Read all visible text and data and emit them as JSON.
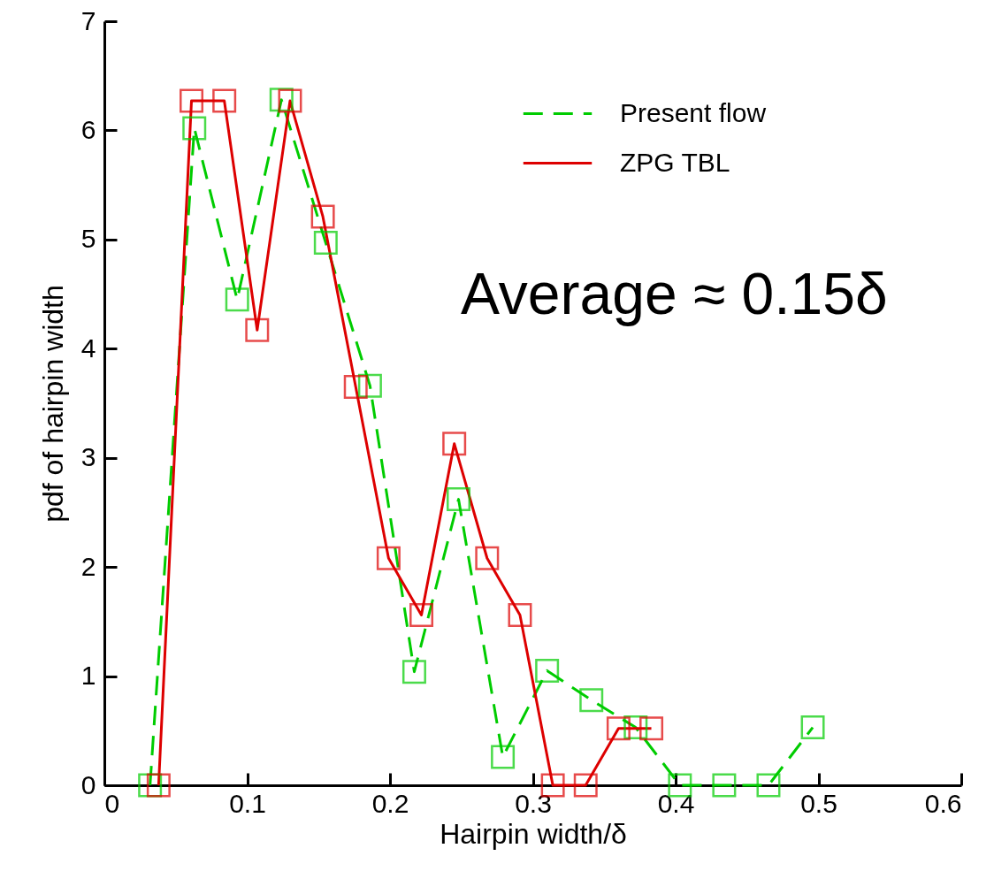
{
  "chart_data": {
    "type": "line",
    "xlabel": "Hairpin width/δ",
    "ylabel": "pdf of hairpin width",
    "annotations": [
      "Average ≈ 0.15δ"
    ],
    "xlim": [
      0,
      0.6
    ],
    "ylim": [
      0,
      7
    ],
    "xticks": [
      0,
      0.1,
      0.2,
      0.3,
      0.4,
      0.5,
      0.6
    ],
    "yticks": [
      0,
      1,
      2,
      3,
      4,
      5,
      6,
      7
    ],
    "legend": "top right",
    "marker": "square",
    "series": [
      {
        "name": "Present flow",
        "color": "#00cc00",
        "line_style": "dashed",
        "x": [
          0.032,
          0.063,
          0.093,
          0.124,
          0.155,
          0.186,
          0.217,
          0.248,
          0.279,
          0.31,
          0.341,
          0.372,
          0.403,
          0.434,
          0.465,
          0.496
        ],
        "values": [
          0,
          6.02,
          4.45,
          6.28,
          4.97,
          3.66,
          1.04,
          2.62,
          0.26,
          1.05,
          0.78,
          0.53,
          0,
          0,
          0,
          0.53
        ]
      },
      {
        "name": "ZPG TBL",
        "color": "#dd0000",
        "line_style": "solid",
        "x": [
          0.038,
          0.061,
          0.084,
          0.107,
          0.13,
          0.153,
          0.176,
          0.199,
          0.222,
          0.245,
          0.268,
          0.291,
          0.314,
          0.337,
          0.36,
          0.383
        ],
        "values": [
          0,
          6.27,
          6.27,
          4.17,
          6.27,
          5.21,
          3.65,
          2.08,
          1.56,
          3.13,
          2.08,
          1.56,
          0,
          0,
          0.52,
          0.52
        ]
      }
    ]
  }
}
